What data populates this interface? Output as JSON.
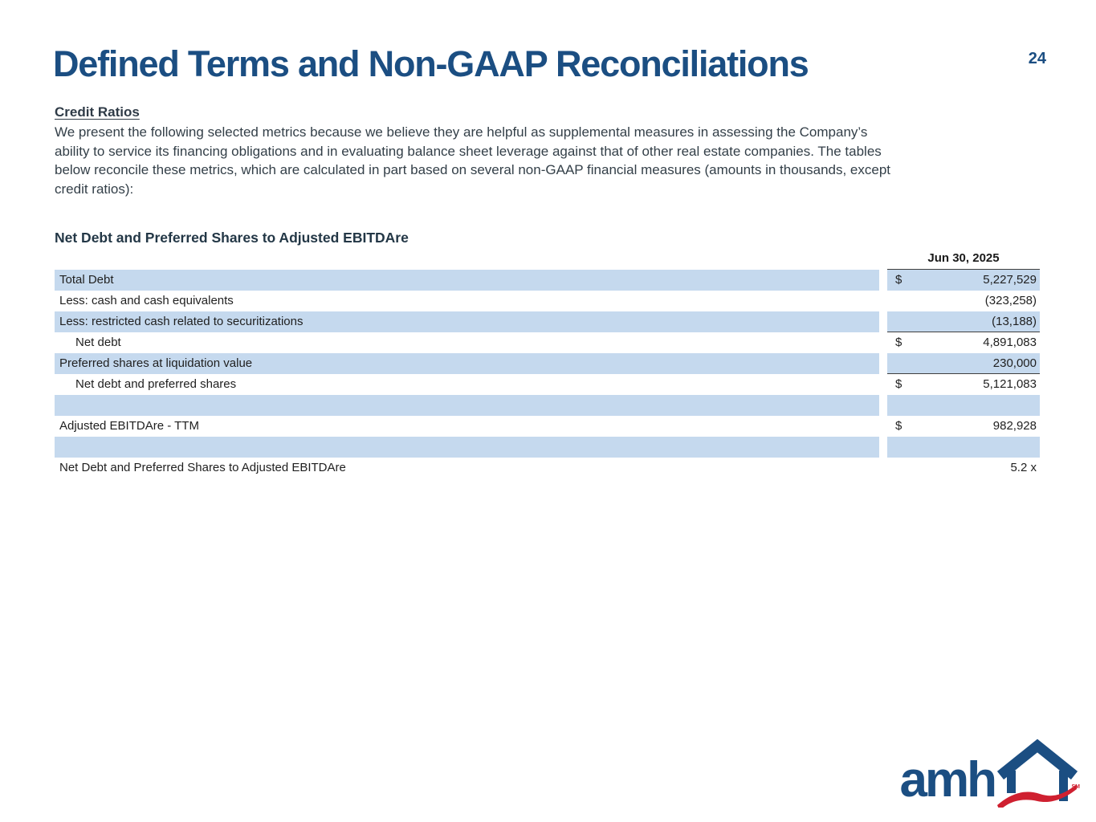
{
  "page": {
    "title": "Defined Terms and Non-GAAP Reconciliations",
    "page_number": "24"
  },
  "section": {
    "heading": "Credit Ratios",
    "body_lines": [
      "We present the following selected metrics because we believe they are helpful as supplemental measures in assessing the Company’s",
      "ability to service its financing obligations and in evaluating balance sheet leverage against that of other real estate companies. The tables",
      "below reconcile these metrics, which are calculated in part based on several non-GAAP financial measures (amounts in thousands, except",
      "credit ratios):"
    ]
  },
  "table": {
    "title": "Net Debt and Preferred Shares to Adjusted EBITDAre",
    "column_header": "Jun 30, 2025",
    "rows": [
      {
        "label": "Total Debt",
        "currency": "$",
        "value": "5,227,529",
        "shaded": true,
        "indent": false,
        "bottom_border": false
      },
      {
        "label": "Less: cash and cash equivalents",
        "currency": "",
        "value": "(323,258)",
        "shaded": false,
        "indent": false,
        "bottom_border": false
      },
      {
        "label": "Less: restricted cash related to securitizations",
        "currency": "",
        "value": "(13,188)",
        "shaded": true,
        "indent": false,
        "bottom_border": true
      },
      {
        "label": "Net debt",
        "currency": "$",
        "value": "4,891,083",
        "shaded": false,
        "indent": true,
        "bottom_border": false
      },
      {
        "label": "Preferred shares at liquidation value",
        "currency": "",
        "value": "230,000",
        "shaded": true,
        "indent": false,
        "bottom_border": true
      },
      {
        "label": "Net debt and preferred shares",
        "currency": "$",
        "value": "5,121,083",
        "shaded": false,
        "indent": true,
        "bottom_border": false
      },
      {
        "label": "",
        "currency": "",
        "value": "",
        "shaded": true,
        "indent": false,
        "bottom_border": false
      },
      {
        "label": "Adjusted EBITDAre - TTM",
        "currency": "$",
        "value": "982,928",
        "shaded": false,
        "indent": false,
        "bottom_border": false
      },
      {
        "label": "",
        "currency": "",
        "value": "",
        "shaded": true,
        "indent": false,
        "bottom_border": false
      },
      {
        "label": "Net Debt and Preferred Shares to Adjusted EBITDAre",
        "currency": "",
        "value": "5.2 x",
        "shaded": false,
        "indent": false,
        "bottom_border": false
      }
    ]
  },
  "logo": {
    "text": "amh",
    "service_mark": "SM"
  },
  "colors": {
    "brand_navy": "#1b4e82",
    "dark_text": "#333f48",
    "row_shade_blue": "#c5d9ee",
    "rule_dark": "#3f3f3f",
    "brand_red": "#cf2030"
  }
}
